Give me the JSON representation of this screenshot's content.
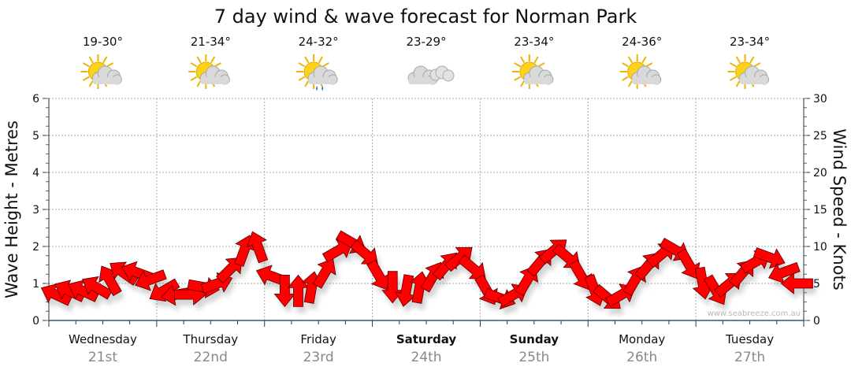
{
  "chart_data": {
    "type": "scatter",
    "title": "7 day wind & wave forecast for Norman Park",
    "ylabel_left": "Wave Height - Metres",
    "ylabel_right": "Wind Speed - Knots",
    "ylim_left": [
      0,
      6
    ],
    "ylim_right": [
      0,
      30
    ],
    "yticks_left": [
      "0",
      "1",
      "2",
      "3",
      "4",
      "5",
      "6"
    ],
    "yticks_right": [
      "0",
      "5",
      "10",
      "15",
      "20",
      "25",
      "30"
    ],
    "grid": true,
    "watermark": "www.seabreeze.com.au",
    "days": [
      {
        "name": "Wednesday",
        "date": "21st",
        "temp": "19-30°",
        "icon": "sun-cloud",
        "bold": false
      },
      {
        "name": "Thursday",
        "date": "22nd",
        "temp": "21-34°",
        "icon": "sun-cloud",
        "bold": false
      },
      {
        "name": "Friday",
        "date": "23rd",
        "temp": "24-32°",
        "icon": "sun-cloud-rain",
        "bold": false
      },
      {
        "name": "Saturday",
        "date": "24th",
        "temp": "23-29°",
        "icon": "cloud",
        "bold": true
      },
      {
        "name": "Sunday",
        "date": "25th",
        "temp": "23-34°",
        "icon": "sun-cloud",
        "bold": true
      },
      {
        "name": "Monday",
        "date": "26th",
        "temp": "24-36°",
        "icon": "sun-cloud",
        "bold": false
      },
      {
        "name": "Tuesday",
        "date": "27th",
        "temp": "23-34°",
        "icon": "sun-cloud",
        "bold": false
      }
    ],
    "wind_series": {
      "name": "Wind",
      "points_per_day": 8,
      "speed_knots": [
        3.5,
        4,
        4,
        4.5,
        5.5,
        6.5,
        6.5,
        5.5,
        4,
        3.5,
        3.5,
        4.5,
        5,
        7,
        9.5,
        10,
        6,
        4,
        4,
        4.5,
        6.5,
        9.5,
        10.5,
        9,
        6,
        4.5,
        4,
        4.5,
        6,
        7.5,
        8.5,
        7,
        4,
        3,
        3.5,
        5.5,
        8,
        9.5,
        8.5,
        6,
        4,
        3,
        3.5,
        5.5,
        7.5,
        9,
        9.5,
        7.5,
        5,
        4,
        5,
        6.5,
        8,
        8.5,
        6.5,
        5
      ],
      "arrow_direction_deg": [
        205,
        205,
        205,
        210,
        240,
        215,
        200,
        160,
        150,
        170,
        0,
        10,
        340,
        315,
        290,
        250,
        200,
        90,
        270,
        280,
        300,
        330,
        30,
        40,
        60,
        90,
        100,
        280,
        300,
        310,
        320,
        40,
        60,
        20,
        330,
        300,
        310,
        320,
        40,
        60,
        70,
        40,
        330,
        300,
        310,
        320,
        30,
        60,
        80,
        60,
        320,
        310,
        330,
        20,
        160,
        180
      ]
    },
    "colors": {
      "arrow": "#ff0000",
      "axis": "#1f5f8b",
      "grid": "#aaaaaa",
      "date": "#888888"
    }
  }
}
